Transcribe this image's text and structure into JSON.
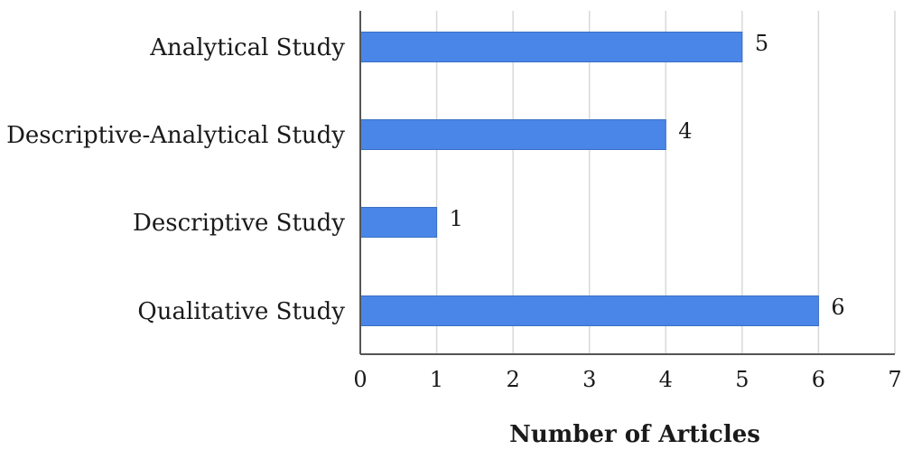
{
  "chart_data": {
    "type": "bar",
    "orientation": "horizontal",
    "categories": [
      "Analytical Study",
      "Descriptive-Analytical Study",
      "Descriptive Study",
      "Qualitative Study"
    ],
    "values": [
      5,
      4,
      1,
      6
    ],
    "data_labels": [
      "5",
      "4",
      "1",
      "6"
    ],
    "xlabel": "Number of Articles",
    "ylabel": "",
    "xlim": [
      0,
      7
    ],
    "xticks": [
      "0",
      "1",
      "2",
      "3",
      "4",
      "5",
      "6",
      "7"
    ],
    "grid": "vertical",
    "legend": "none",
    "bar_color": "#4a86e8"
  }
}
